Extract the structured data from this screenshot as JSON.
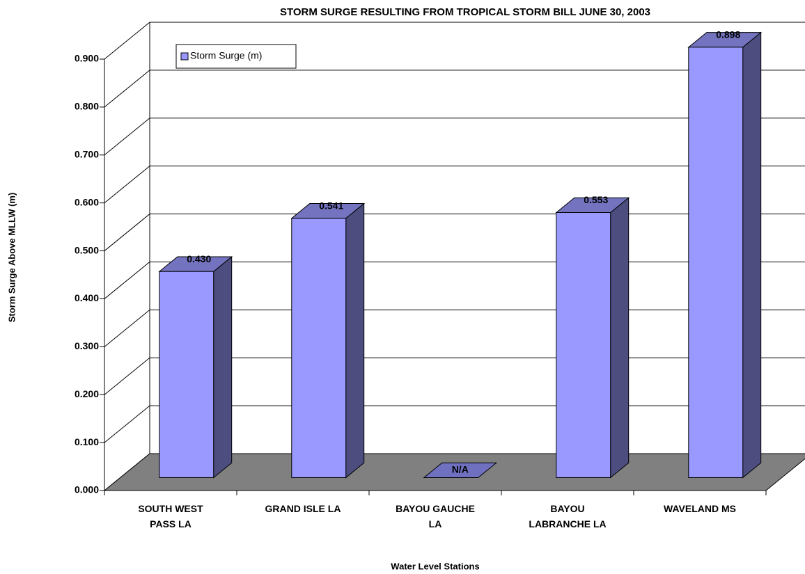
{
  "chart_data": {
    "type": "bar3d",
    "title": "STORM SURGE RESULTING FROM TROPICAL STORM BILL JUNE 30, 2003",
    "y_label": "Storm Surge Above MLLW (m)",
    "x_label": "Water Level Stations",
    "categories": [
      "SOUTH WEST PASS LA",
      "GRAND ISLE LA",
      "BAYOU GAUCHE LA",
      "BAYOU LABRANCHE LA",
      "WAVELAND MS"
    ],
    "series": [
      {
        "name": "Storm Surge (m)",
        "color": "#9999ff",
        "values": [
          0.43,
          0.541,
          null,
          0.553,
          0.898
        ],
        "value_labels": [
          "0.430",
          "0.541",
          "N/A",
          "0.553",
          "0.898"
        ]
      }
    ],
    "ylim": [
      0,
      0.9
    ],
    "yticks": [
      {
        "value": 0,
        "label": "0.000"
      },
      {
        "value": 0.1,
        "label": "0.100"
      },
      {
        "value": 0.2,
        "label": "0.200"
      },
      {
        "value": 0.3,
        "label": "0.300"
      },
      {
        "value": 0.4,
        "label": "0.400"
      },
      {
        "value": 0.5,
        "label": "0.500"
      },
      {
        "value": 0.6,
        "label": "0.600"
      },
      {
        "value": 0.7,
        "label": "0.700"
      },
      {
        "value": 0.8,
        "label": "0.800"
      },
      {
        "value": 0.9,
        "label": "0.900"
      }
    ],
    "grid": true,
    "legend": "top-left"
  }
}
